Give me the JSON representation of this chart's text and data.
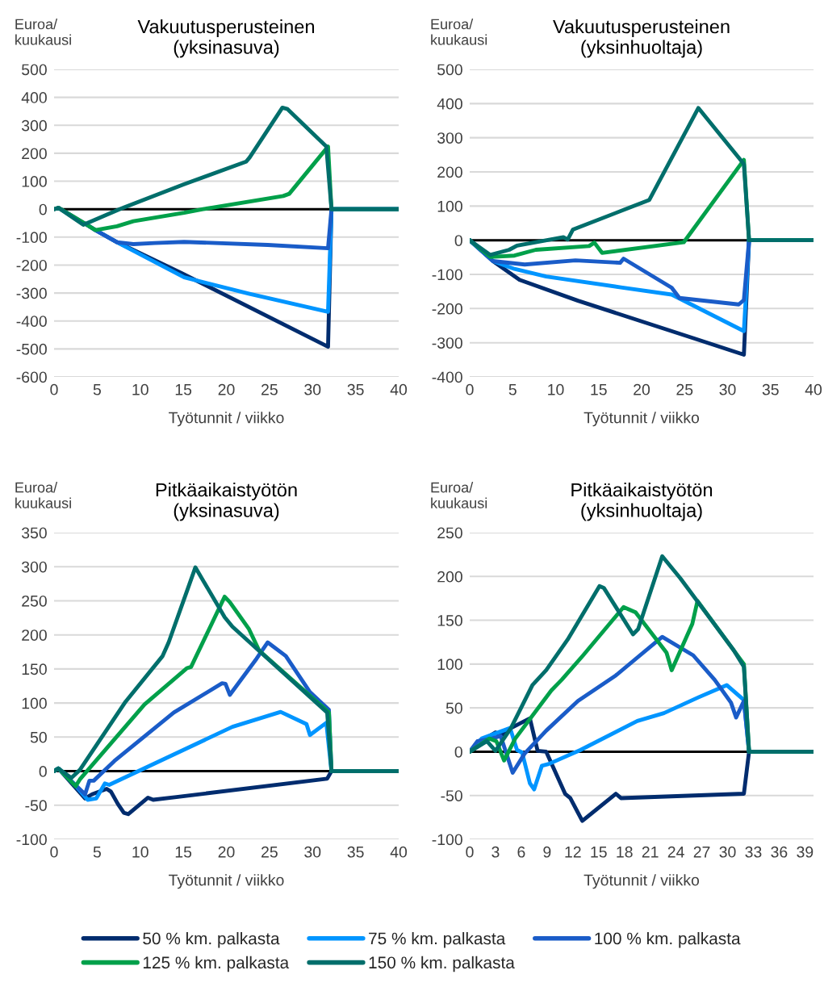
{
  "chart_data": [
    {
      "type": "line",
      "title": "Vakuutusperusteinen\n(yksinasuva)",
      "ylabel": "Euroa/\nkuukausi",
      "xlabel": "Työtunnit / viikko",
      "xlim": [
        0,
        40
      ],
      "xticks": [
        0,
        5,
        10,
        15,
        20,
        25,
        30,
        35,
        40
      ],
      "ylim": [
        -600,
        500
      ],
      "yticks": [
        -600,
        -500,
        -400,
        -300,
        -200,
        -100,
        0,
        100,
        200,
        300,
        400,
        500
      ],
      "grid": "y",
      "legend": "bottom",
      "ref_lines": [
        {
          "axis": "y",
          "value": 0,
          "color": "#000000"
        }
      ],
      "series": [
        {
          "name": "50 % km. palkasta",
          "color": "#002c6e",
          "x": [
            0,
            0.5,
            3.5,
            4.8,
            7.3,
            14.8,
            31.8,
            32.2,
            40
          ],
          "values": [
            0,
            5,
            -50,
            -75,
            -118,
            -229,
            -492,
            0,
            0
          ]
        },
        {
          "name": "75 % km. palkasta",
          "color": "#0095ff",
          "x": [
            4.8,
            7.3,
            15.1,
            22.6,
            31.8,
            32.2,
            40
          ],
          "values": [
            -75,
            -118,
            -244,
            -302,
            -367,
            0,
            0
          ]
        },
        {
          "name": "100 % km. palkasta",
          "color": "#1a5cc8",
          "x": [
            3.5,
            4.8,
            7.3,
            9.2,
            11.7,
            15.1,
            24.8,
            31.8,
            32.2,
            40
          ],
          "values": [
            -50,
            -75,
            -118,
            -125,
            -121,
            -117,
            -128,
            -140,
            0,
            0
          ]
        },
        {
          "name": "125 % km. palkasta",
          "color": "#00a04a",
          "x": [
            0,
            0.5,
            3.5,
            4.8,
            7.3,
            9.2,
            15.1,
            17.3,
            26.6,
            27.3,
            31.8,
            32.2,
            40
          ],
          "values": [
            0,
            5,
            -50,
            -75,
            -61,
            -43,
            -13,
            0,
            47,
            55,
            224,
            0,
            0
          ]
        },
        {
          "name": "150 % km. palkasta",
          "color": "#006e6b",
          "x": [
            0,
            0.5,
            3.4,
            7.6,
            15.1,
            22.3,
            22.7,
            26.5,
            27.1,
            31.6,
            32.2,
            40
          ],
          "values": [
            0,
            5,
            -56,
            0,
            89,
            170,
            185,
            363,
            358,
            224,
            0,
            0
          ]
        }
      ]
    },
    {
      "type": "line",
      "title": "Vakuutusperusteinen\n(yksinhuoltaja)",
      "ylabel": "Euroa/\nkuukausi",
      "xlabel": "Työtunnit / viikko",
      "xlim": [
        0,
        40
      ],
      "xticks": [
        0,
        5,
        10,
        15,
        20,
        25,
        30,
        35,
        40
      ],
      "ylim": [
        -400,
        500
      ],
      "yticks": [
        -400,
        -300,
        -200,
        -100,
        0,
        100,
        200,
        300,
        400,
        500
      ],
      "grid": "y",
      "legend": "bottom",
      "ref_lines": [
        {
          "axis": "y",
          "value": 0,
          "color": "#000000"
        }
      ],
      "series": [
        {
          "name": "50 % km. palkasta",
          "color": "#002c6e",
          "x": [
            0,
            2.7,
            5.8,
            12.6,
            26.3,
            31.9,
            32.5,
            40
          ],
          "values": [
            0,
            -61,
            -116,
            -177,
            -289,
            -335,
            0,
            0
          ]
        },
        {
          "name": "75 % km. palkasta",
          "color": "#0095ff",
          "x": [
            0,
            2.7,
            5.2,
            8.9,
            17.6,
            23.5,
            31.9,
            32.5,
            40
          ],
          "values": [
            0,
            -61,
            -84,
            -106,
            -138,
            -159,
            -266,
            0,
            0
          ]
        },
        {
          "name": "100 % km. palkasta",
          "color": "#1a5cc8",
          "x": [
            0,
            2.7,
            6.4,
            12.3,
            17.5,
            17.9,
            23.5,
            24.4,
            31.3,
            31.9,
            32.5,
            40
          ],
          "values": [
            0,
            -61,
            -71,
            -59,
            -66,
            -54,
            -139,
            -169,
            -188,
            -175,
            0,
            0
          ]
        },
        {
          "name": "125 % km. palkasta",
          "color": "#00a04a",
          "x": [
            0,
            2.4,
            5.2,
            7.7,
            13.9,
            14.5,
            15.4,
            24.9,
            31.9,
            32.5,
            40
          ],
          "values": [
            0,
            -49,
            -45,
            -28,
            -17,
            -7,
            -37,
            -6,
            235,
            0,
            0
          ]
        },
        {
          "name": "150 % km. palkasta",
          "color": "#006e6b",
          "x": [
            0,
            2.4,
            4.6,
            5.5,
            10.9,
            11.4,
            12,
            20.9,
            26.6,
            31.9,
            32.5,
            40
          ],
          "values": [
            0,
            -43,
            -28,
            -16,
            9,
            2,
            31,
            118,
            387,
            223,
            0,
            0
          ]
        }
      ]
    },
    {
      "type": "line",
      "title": "Pitkäaikaistyötön\n(yksinasuva)",
      "ylabel": "Euroa/\nkuukausi",
      "xlabel": "Työtunnit / viikko",
      "xlim": [
        0,
        40
      ],
      "xticks": [
        0,
        5,
        10,
        15,
        20,
        25,
        30,
        35,
        40
      ],
      "ylim": [
        -100,
        350
      ],
      "yticks": [
        -100,
        -50,
        0,
        50,
        100,
        150,
        200,
        250,
        300,
        350
      ],
      "grid": "y",
      "legend": "bottom",
      "ref_lines": [
        {
          "axis": "y",
          "value": 0,
          "color": "#000000"
        }
      ],
      "series": [
        {
          "name": "50 % km. palkasta",
          "color": "#002c6e",
          "x": [
            0,
            0.5,
            3.6,
            4.4,
            6.1,
            6.6,
            7.4,
            8.1,
            8.6,
            10.9,
            11.5,
            14.2,
            31.7,
            32.2,
            40
          ],
          "values": [
            0,
            4,
            -40,
            -34,
            -26,
            -30,
            -48,
            -61,
            -63,
            -39,
            -42,
            -38,
            -11,
            0,
            0
          ]
        },
        {
          "name": "75 % km. palkasta",
          "color": "#0095ff",
          "x": [
            0,
            0.5,
            2.7,
            3.9,
            4.9,
            5.9,
            6.4,
            20.7,
            26.3,
            29.3,
            29.7,
            31.6,
            32.2,
            40
          ],
          "values": [
            0,
            4,
            -24,
            -42,
            -40,
            -18,
            -20,
            65,
            87,
            69,
            53,
            71,
            0,
            0
          ]
        },
        {
          "name": "100 % km. palkasta",
          "color": "#1a5cc8",
          "x": [
            0,
            0.5,
            3.6,
            4.1,
            4.6,
            7,
            13.9,
            19.5,
            19.9,
            20.4,
            23.5,
            24.8,
            26.9,
            29.7,
            31.9,
            32.2,
            40
          ],
          "values": [
            0,
            4,
            -34,
            -14,
            -14,
            15,
            86,
            129,
            128,
            112,
            165,
            189,
            169,
            116,
            90,
            0,
            0
          ]
        },
        {
          "name": "125 % km. palkasta",
          "color": "#00a04a",
          "x": [
            0,
            0.5,
            2.5,
            3,
            10.5,
            15.4,
            15.9,
            19.8,
            20.4,
            22.6,
            23.8,
            31.9,
            32.2,
            40
          ],
          "values": [
            0,
            4,
            -22,
            -12,
            98,
            151,
            153,
            256,
            248,
            209,
            177,
            86,
            0,
            0
          ]
        },
        {
          "name": "150 % km. palkasta",
          "color": "#006e6b",
          "x": [
            0,
            0.5,
            2,
            3,
            8.3,
            12.6,
            13.3,
            15.7,
            16.4,
            19.8,
            20.7,
            31.7,
            32.2,
            40
          ],
          "values": [
            0,
            4,
            -10,
            2,
            102,
            169,
            189,
            274,
            299,
            226,
            212,
            86,
            0,
            0
          ]
        }
      ]
    },
    {
      "type": "line",
      "title": "Pitkäaikaistyötön\n(yksinhuoltaja)",
      "ylabel": "Euroa/\nkuukausi",
      "xlabel": "Työtunnit / viikko",
      "xlim": [
        0,
        40
      ],
      "xticks": [
        0,
        3,
        6,
        9,
        12,
        15,
        18,
        21,
        24,
        27,
        30,
        33,
        36,
        39
      ],
      "ylim": [
        -100,
        250
      ],
      "yticks": [
        -100,
        -50,
        0,
        50,
        100,
        150,
        200,
        250
      ],
      "grid": "y",
      "legend": "bottom",
      "ref_lines": [
        {
          "axis": "y",
          "value": 0,
          "color": "#000000"
        }
      ],
      "series": [
        {
          "name": "50 % km. palkasta",
          "color": "#002c6e",
          "x": [
            0,
            2,
            3,
            3.6,
            4.8,
            7,
            7.9,
            8.9,
            11.1,
            11.7,
            13.1,
            17,
            17.6,
            31.9,
            32.5,
            40
          ],
          "values": [
            0,
            16,
            22,
            18,
            27,
            38,
            1,
            0,
            -48,
            -53,
            -79,
            -48,
            -53,
            -48,
            0,
            0
          ]
        },
        {
          "name": "75 % km. palkasta",
          "color": "#0095ff",
          "x": [
            0,
            1.4,
            4.7,
            5.5,
            6.1,
            7,
            7.5,
            8.4,
            9.2,
            12.9,
            19.5,
            22.6,
            26.6,
            29.9,
            31.9,
            32.5,
            40
          ],
          "values": [
            0,
            15,
            27,
            2,
            -1,
            -36,
            -43,
            -16,
            -14,
            2,
            35,
            44,
            62,
            76,
            59,
            0,
            0
          ]
        },
        {
          "name": "100 % km. palkasta",
          "color": "#1a5cc8",
          "x": [
            0,
            0.9,
            2.6,
            3.6,
            4,
            5,
            6.4,
            8.9,
            12.6,
            17,
            22.4,
            26,
            28.5,
            30.4,
            31,
            31.9,
            32.5,
            40
          ],
          "values": [
            0,
            12,
            15,
            18,
            6,
            -24,
            -2,
            24,
            58,
            87,
            131,
            110,
            82,
            56,
            39,
            58,
            0,
            0
          ]
        },
        {
          "name": "125 % km. palkasta",
          "color": "#00a04a",
          "x": [
            0,
            2.3,
            3.1,
            4,
            5.3,
            9.5,
            10.7,
            13.2,
            17.9,
            19.3,
            22.9,
            23.5,
            25.9,
            26.5,
            31.9,
            32.5,
            40
          ],
          "values": [
            0,
            15,
            12,
            -10,
            15,
            70,
            82,
            110,
            165,
            159,
            113,
            93,
            146,
            172,
            100,
            0,
            0
          ]
        },
        {
          "name": "150 % km. palkasta",
          "color": "#006e6b",
          "x": [
            0,
            2,
            3,
            4.8,
            7.3,
            8.9,
            11.4,
            15.1,
            15.6,
            19,
            19.6,
            22.4,
            24.5,
            30.7,
            31.9,
            32.5,
            40
          ],
          "values": [
            0,
            12,
            1,
            27,
            76,
            93,
            128,
            189,
            187,
            134,
            140,
            223,
            198,
            116,
            97,
            0,
            0
          ]
        }
      ]
    }
  ]
}
